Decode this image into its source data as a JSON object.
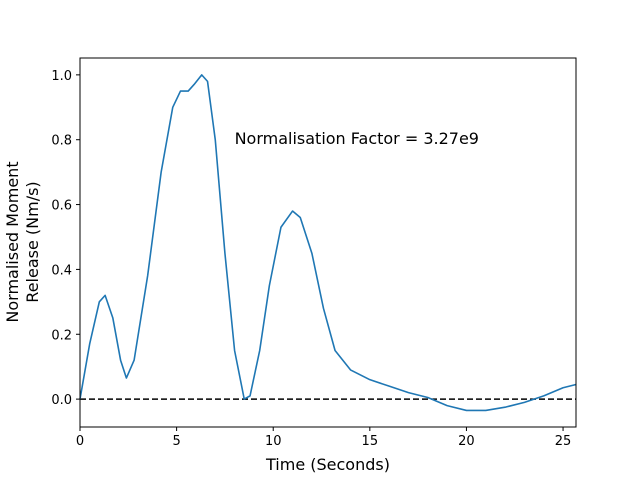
{
  "chart_data": {
    "type": "line",
    "xlabel": "Time (Seconds)",
    "ylabel": [
      "Normalised Moment",
      "Release (Nm/s)"
    ],
    "annotation": {
      "text": "Normalisation Factor = 3.27e9",
      "x": 8.0,
      "y": 0.8
    },
    "reference_line": {
      "y": 0,
      "color": "#000000",
      "dashed": true
    },
    "xlim": [
      0,
      25.67
    ],
    "ylim": [
      -0.086,
      1.052
    ],
    "xticks": [
      0,
      5,
      10,
      15,
      20,
      25
    ],
    "yticks": [
      {
        "value": 0,
        "label": "0.0"
      },
      0.2,
      0.4,
      0.6,
      0.8,
      {
        "value": 1,
        "label": "1.0"
      }
    ],
    "x": [
      0,
      0.5,
      1.0,
      1.3,
      1.7,
      2.1,
      2.4,
      2.8,
      3.5,
      4.2,
      4.8,
      5.2,
      5.6,
      5.9,
      6.3,
      6.6,
      7.0,
      7.5,
      8.0,
      8.5,
      8.8,
      9.3,
      9.8,
      10.4,
      11.0,
      11.4,
      12.0,
      12.6,
      13.2,
      14.0,
      15.0,
      16.0,
      17.0,
      18.0,
      19.0,
      20.0,
      21.0,
      22.0,
      23.0,
      24.0,
      25.0,
      25.67
    ],
    "series": [
      {
        "color": "#1f77b4",
        "values": [
          0,
          0.17,
          0.3,
          0.32,
          0.25,
          0.12,
          0.065,
          0.12,
          0.38,
          0.7,
          0.9,
          0.95,
          0.95,
          0.97,
          1.0,
          0.98,
          0.8,
          0.45,
          0.15,
          0.0,
          0.01,
          0.15,
          0.35,
          0.53,
          0.58,
          0.56,
          0.45,
          0.28,
          0.15,
          0.09,
          0.06,
          0.04,
          0.02,
          0.005,
          -0.02,
          -0.035,
          -0.035,
          -0.025,
          -0.01,
          0.01,
          0.035,
          0.045
        ]
      }
    ]
  }
}
